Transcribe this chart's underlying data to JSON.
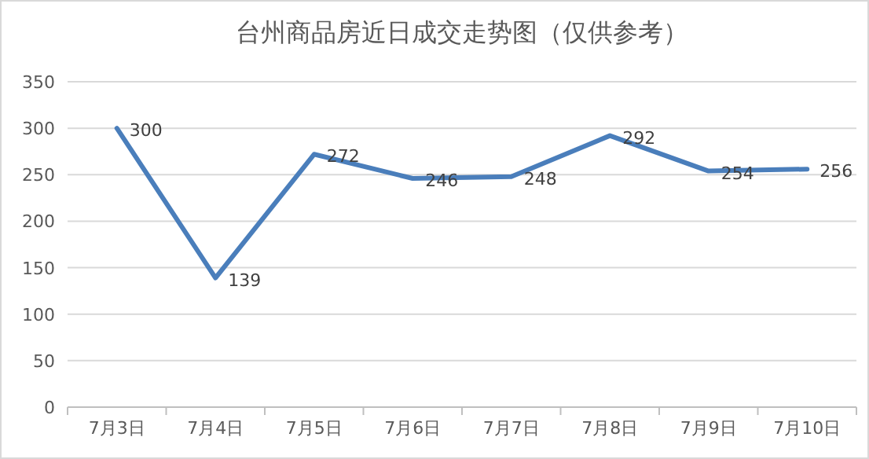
{
  "chart_data": {
    "type": "line",
    "title": "台州商品房近日成交走势图（仅供参考）",
    "categories": [
      "7月3日",
      "7月4日",
      "7月5日",
      "7月6日",
      "7月7日",
      "7月8日",
      "7月9日",
      "7月10日"
    ],
    "values": [
      300,
      139,
      272,
      246,
      248,
      292,
      254,
      256
    ],
    "color": "#4a7ebb",
    "ylim": [
      0,
      350
    ],
    "yticks": [
      0,
      50,
      100,
      150,
      200,
      250,
      300,
      350
    ],
    "grid": "y",
    "data_labels": true
  }
}
